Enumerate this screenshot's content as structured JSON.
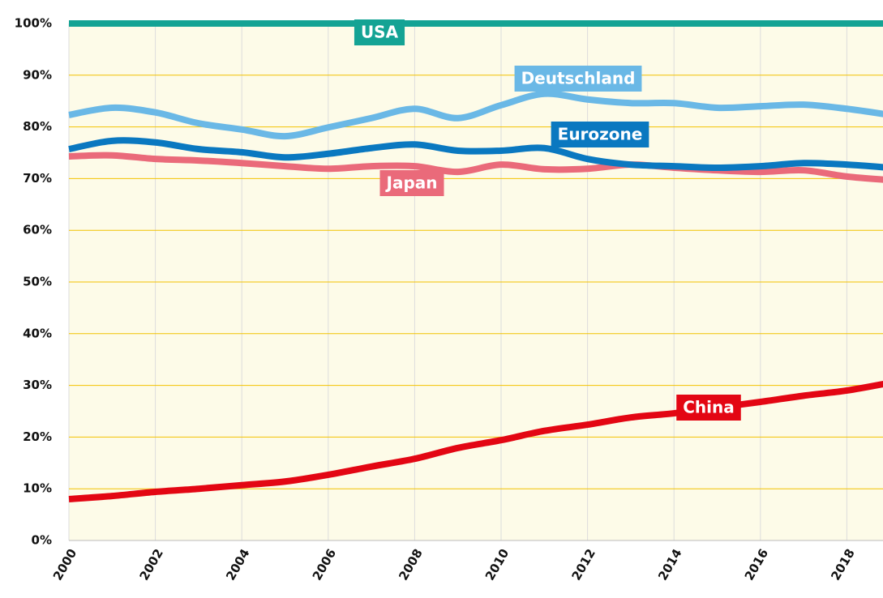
{
  "chart_data": {
    "type": "line",
    "x": [
      2000,
      2001,
      2002,
      2003,
      2004,
      2005,
      2006,
      2007,
      2008,
      2009,
      2010,
      2011,
      2012,
      2013,
      2014,
      2015,
      2016,
      2017,
      2018,
      2019
    ],
    "series": [
      {
        "name": "USA",
        "color": "#14a394",
        "values": [
          100,
          100,
          100,
          100,
          100,
          100,
          100,
          100,
          100,
          100,
          100,
          100,
          100,
          100,
          100,
          100,
          100,
          100,
          100,
          100
        ]
      },
      {
        "name": "Deutschland",
        "color": "#6ab8e6",
        "values": [
          82.3,
          83.7,
          82.8,
          80.7,
          79.5,
          78.2,
          79.9,
          81.7,
          83.5,
          81.7,
          84.2,
          86.4,
          85.3,
          84.6,
          84.6,
          83.7,
          84.0,
          84.3,
          83.5,
          82.3
        ]
      },
      {
        "name": "Eurozone",
        "color": "#0a78c0",
        "values": [
          75.7,
          77.3,
          77.0,
          75.7,
          75.1,
          74.1,
          74.8,
          75.9,
          76.6,
          75.4,
          75.4,
          75.9,
          73.8,
          72.7,
          72.4,
          72.1,
          72.4,
          73.0,
          72.7,
          72.1
        ]
      },
      {
        "name": "Japan",
        "color": "#ea6a7a",
        "values": [
          74.3,
          74.5,
          73.8,
          73.5,
          73.0,
          72.4,
          71.9,
          72.4,
          72.4,
          71.3,
          72.7,
          71.8,
          71.9,
          72.7,
          72.1,
          71.6,
          71.3,
          71.6,
          70.4,
          69.7
        ]
      },
      {
        "name": "China",
        "color": "#e30613",
        "values": [
          8.0,
          8.6,
          9.4,
          10.0,
          10.7,
          11.4,
          12.7,
          14.3,
          15.8,
          17.9,
          19.4,
          21.2,
          22.4,
          23.8,
          24.6,
          25.7,
          26.8,
          28.0,
          29.0,
          30.5
        ]
      }
    ],
    "xlim": [
      2000,
      2019
    ],
    "xticks": [
      2000,
      2002,
      2004,
      2006,
      2008,
      2010,
      2012,
      2014,
      2016,
      2018
    ],
    "ylim": [
      0,
      100
    ],
    "yticks": [
      {
        "value": 0,
        "label": "0%"
      },
      {
        "value": 10,
        "label": "10%"
      },
      {
        "value": 20,
        "label": "20%"
      },
      {
        "value": 30,
        "label": "30%"
      },
      {
        "value": 40,
        "label": "40%"
      },
      {
        "value": 50,
        "label": "50%"
      },
      {
        "value": 60,
        "label": "60%"
      },
      {
        "value": 70,
        "label": "70%"
      },
      {
        "value": 80,
        "label": "80%"
      },
      {
        "value": 90,
        "label": "90%"
      },
      {
        "value": 100,
        "label": "100%"
      }
    ],
    "grid": true
  }
}
